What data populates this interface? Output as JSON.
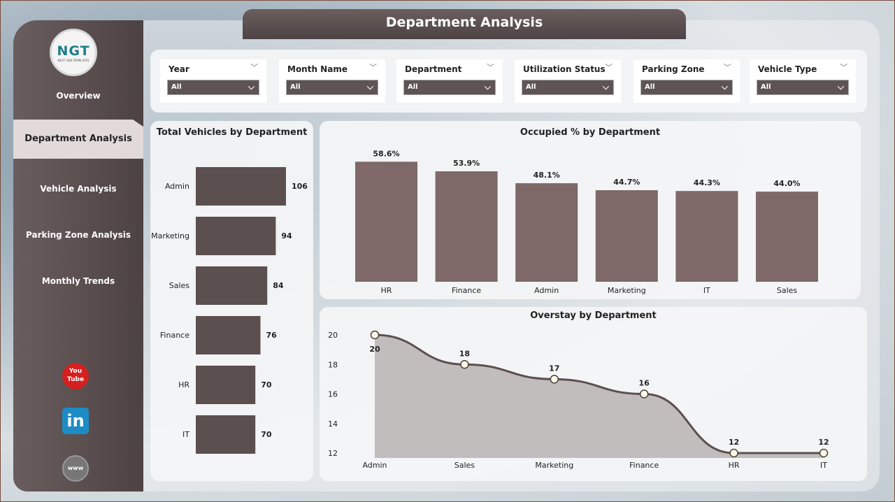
{
  "title": "Department Analysis",
  "logo": {
    "text": "NGT",
    "subtitle": "NEXT GEN TEMPLATES"
  },
  "nav": [
    {
      "label": "Overview"
    },
    {
      "label": "Department Analysis",
      "active": true
    },
    {
      "label": "Vehicle Analysis"
    },
    {
      "label": "Parking Zone Analysis"
    },
    {
      "label": "Monthly Trends"
    }
  ],
  "social": [
    "youtube-icon",
    "linkedin-icon",
    "website-icon"
  ],
  "filters": [
    {
      "label": "Year",
      "value": "All"
    },
    {
      "label": "Month Name",
      "value": "All"
    },
    {
      "label": "Department",
      "value": "All"
    },
    {
      "label": "Utilization Status",
      "value": "All"
    },
    {
      "label": "Parking Zone",
      "value": "All"
    },
    {
      "label": "Vehicle Type",
      "value": "All"
    }
  ],
  "colors": {
    "bar": "#5c4f50",
    "occ": "#7e6868",
    "line": "#5c4f50",
    "area": "#b8b3b3"
  },
  "chart_data": [
    {
      "type": "bar",
      "orientation": "horizontal",
      "title": "Total Vehicles by Department",
      "categories": [
        "Admin",
        "Marketing",
        "Sales",
        "Finance",
        "HR",
        "IT"
      ],
      "values": [
        106,
        94,
        84,
        76,
        70,
        70
      ]
    },
    {
      "type": "bar",
      "title": "Occupied % by Department",
      "categories": [
        "HR",
        "Finance",
        "Admin",
        "Marketing",
        "IT",
        "Sales"
      ],
      "values": [
        58.6,
        53.9,
        48.1,
        44.7,
        44.3,
        44.0
      ],
      "labels": [
        "58.6%",
        "53.9%",
        "48.1%",
        "44.7%",
        "44.3%",
        "44.0%"
      ]
    },
    {
      "type": "area",
      "title": "Overstay by Department",
      "categories": [
        "Admin",
        "Sales",
        "Marketing",
        "Finance",
        "HR",
        "IT"
      ],
      "values": [
        20,
        18,
        17,
        16,
        12,
        12
      ],
      "yticks": [
        12,
        14,
        16,
        18,
        20
      ],
      "ylim": [
        12,
        20
      ]
    }
  ]
}
